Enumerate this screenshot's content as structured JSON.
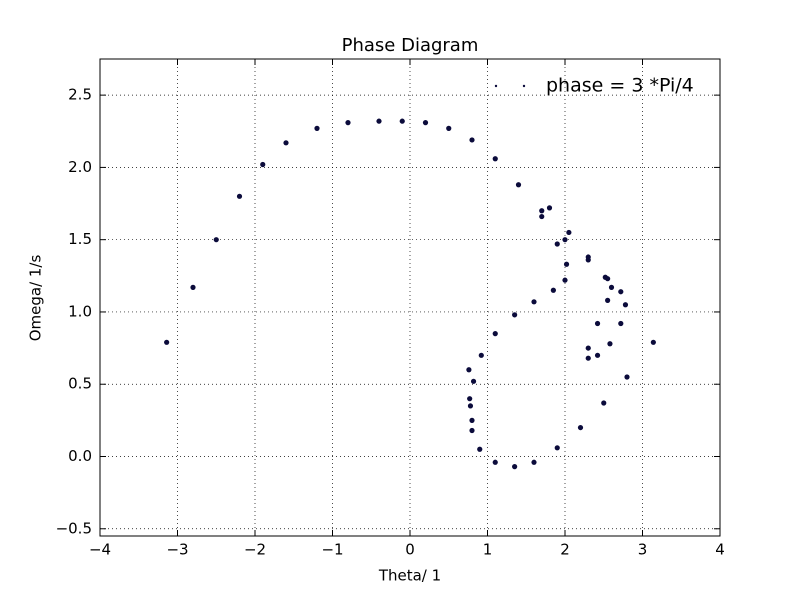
{
  "chart_data": {
    "type": "scatter",
    "title": "Phase Diagram",
    "x_label": "Theta/ 1",
    "y_label": "Omega/ 1/s",
    "xlim": [
      -4,
      4
    ],
    "ylim": [
      -0.55,
      2.75
    ],
    "xticks": [
      {
        "value": -4,
        "label": "−4"
      },
      {
        "value": -3,
        "label": "−3"
      },
      {
        "value": -2,
        "label": "−2"
      },
      {
        "value": -1,
        "label": "−1"
      },
      0,
      1,
      2,
      3,
      4
    ],
    "yticks": [
      {
        "value": -0.5,
        "label": "−0.5"
      },
      {
        "value": 0,
        "label": "0.0"
      },
      0.5,
      {
        "value": 1,
        "label": "1.0"
      },
      1.5,
      {
        "value": 2,
        "label": "2.0"
      },
      2.5
    ],
    "grid": true,
    "legend": "upper right",
    "series": [
      {
        "name": "phase = 3 *Pi/4",
        "color": "#0b0b3b",
        "x": [
          -3.14,
          -2.8,
          -2.5,
          -2.2,
          -1.9,
          -1.6,
          -1.2,
          -0.8,
          -0.4,
          -0.1,
          0.2,
          0.5,
          0.8,
          1.1,
          1.4,
          1.7,
          1.9,
          2.02,
          2.0,
          1.85,
          1.6,
          1.35,
          1.1,
          0.92,
          0.82,
          0.78,
          0.8,
          0.9,
          1.1,
          1.35,
          1.6,
          1.9,
          2.2,
          2.5,
          2.8,
          3.14,
          1.7,
          2.0,
          2.3,
          2.55,
          2.72,
          2.78,
          2.72,
          2.58,
          2.42,
          2.3,
          2.3,
          2.42,
          2.55,
          2.6,
          2.52,
          2.3,
          2.05,
          1.8,
          0.76,
          0.77,
          0.8
        ],
        "values": [
          0.79,
          1.17,
          1.5,
          1.8,
          2.02,
          2.17,
          2.27,
          2.31,
          2.32,
          2.32,
          2.31,
          2.27,
          2.19,
          2.06,
          1.88,
          1.66,
          1.47,
          1.33,
          1.22,
          1.15,
          1.07,
          0.98,
          0.85,
          0.7,
          0.52,
          0.35,
          0.18,
          0.05,
          -0.04,
          -0.07,
          -0.04,
          0.06,
          0.2,
          0.37,
          0.55,
          0.79,
          1.7,
          1.5,
          1.36,
          1.23,
          1.14,
          1.05,
          0.92,
          0.78,
          0.7,
          0.68,
          0.75,
          0.92,
          1.08,
          1.17,
          1.24,
          1.38,
          1.55,
          1.72,
          0.6,
          0.4,
          0.25
        ]
      }
    ]
  }
}
